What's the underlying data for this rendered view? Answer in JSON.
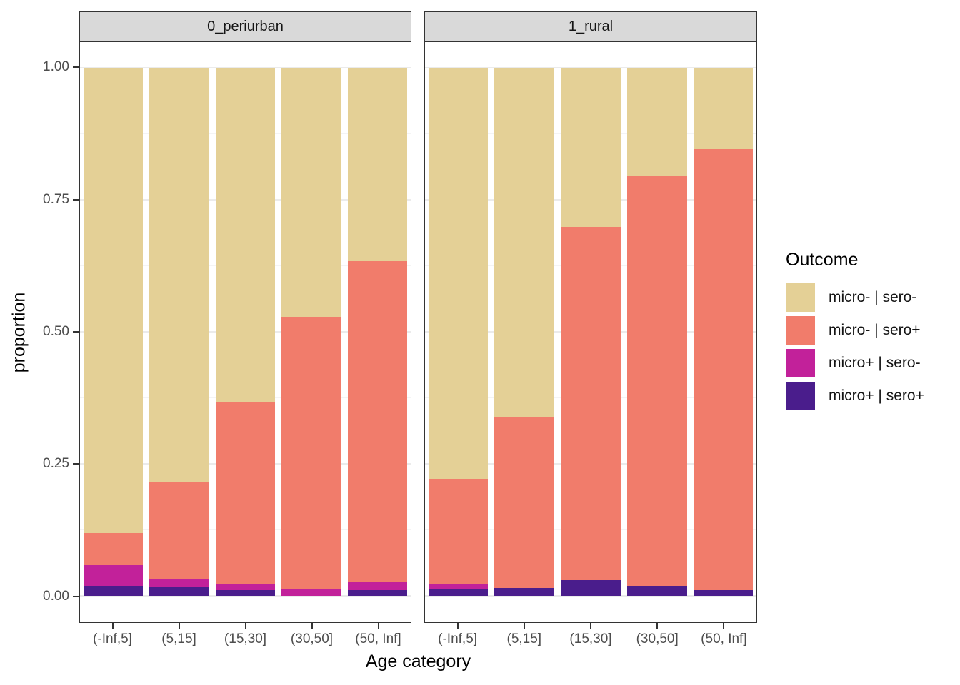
{
  "chart_data": {
    "type": "bar",
    "stacked": true,
    "orientation": "vertical",
    "xlabel": "Age category",
    "ylabel": "proportion",
    "ylim": [
      0,
      1
    ],
    "y_expansion": 0.05,
    "grid": true,
    "yticks": [
      0,
      0.25,
      0.5,
      0.75,
      1
    ],
    "ytick_labels": [
      "0.00",
      "0.25",
      "0.50",
      "0.75",
      "1.00"
    ],
    "y_minor_ticks": [
      0.125,
      0.375,
      0.625,
      0.875
    ],
    "categories": [
      "(-Inf,5]",
      "(5,15]",
      "(15,30]",
      "(30,50]",
      "(50, Inf]"
    ],
    "legend": {
      "title": "Outcome",
      "position": "right",
      "entries": [
        {
          "label": "micro- | sero-",
          "color": "#e4d096"
        },
        {
          "label": "micro- | sero+",
          "color": "#f17c6b"
        },
        {
          "label": "micro+ | sero-",
          "color": "#c2219a"
        },
        {
          "label": "micro+ | sero+",
          "color": "#4a1d8c"
        }
      ]
    },
    "facets": [
      {
        "label": "0_periurban",
        "series": [
          {
            "name": "micro+ | sero+",
            "color": "#4a1d8c",
            "values": [
              0.019,
              0.016,
              0.011,
              0.0,
              0.011
            ]
          },
          {
            "name": "micro+ | sero-",
            "color": "#c2219a",
            "values": [
              0.039,
              0.015,
              0.012,
              0.012,
              0.015
            ]
          },
          {
            "name": "micro- | sero+",
            "color": "#f17c6b",
            "values": [
              0.061,
              0.184,
              0.344,
              0.516,
              0.608
            ]
          },
          {
            "name": "micro- | sero-",
            "color": "#e4d096",
            "values": [
              0.881,
              0.785,
              0.633,
              0.472,
              0.366
            ]
          }
        ]
      },
      {
        "label": "1_rural",
        "series": [
          {
            "name": "micro+ | sero+",
            "color": "#4a1d8c",
            "values": [
              0.014,
              0.015,
              0.03,
              0.019,
              0.011
            ]
          },
          {
            "name": "micro+ | sero-",
            "color": "#c2219a",
            "values": [
              0.009,
              0.0,
              0.0,
              0.0,
              0.0
            ]
          },
          {
            "name": "micro- | sero+",
            "color": "#f17c6b",
            "values": [
              0.199,
              0.324,
              0.669,
              0.777,
              0.835
            ]
          },
          {
            "name": "micro- | sero-",
            "color": "#e4d096",
            "values": [
              0.778,
              0.661,
              0.301,
              0.204,
              0.154
            ]
          }
        ]
      }
    ],
    "theme": {
      "strip_fill": "#d9d9d9",
      "panel_border": "#333333",
      "grid_major": "#ebebeb",
      "grid_minor": "#f4f4f4",
      "tick_label_color": "#4d4d4d"
    }
  }
}
